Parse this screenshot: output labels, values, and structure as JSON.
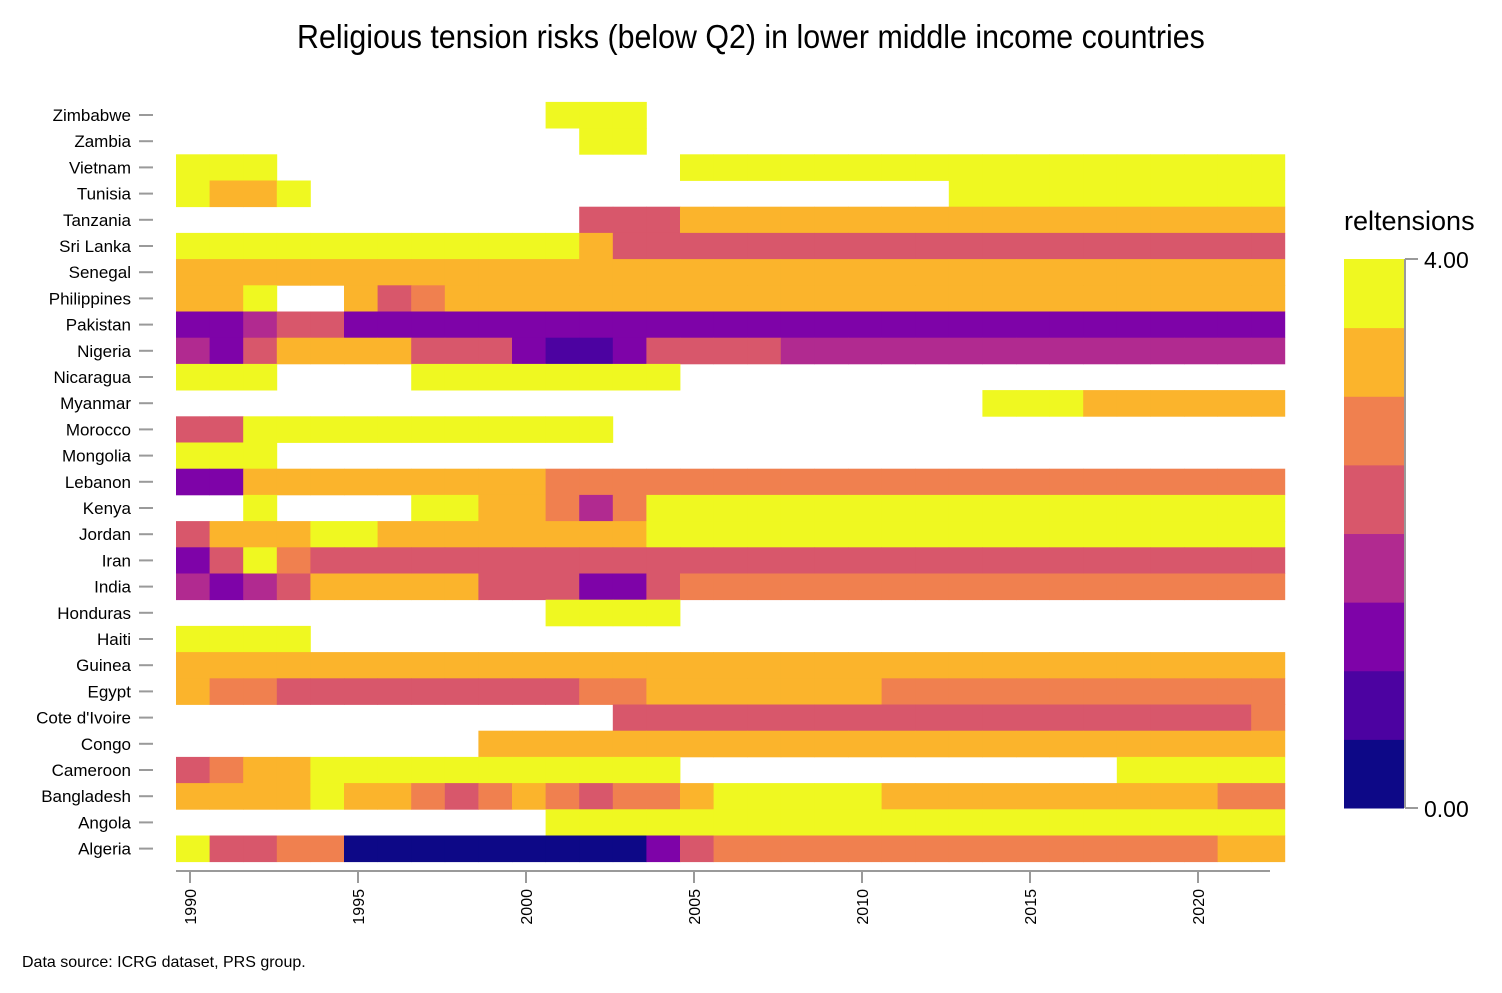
{
  "chart_data": {
    "type": "heatmap",
    "title": "Religious tension risks (below Q2) in lower middle income countries",
    "source": "Data source: ICRG dataset, PRS group.",
    "years": [
      1990,
      1991,
      1992,
      1993,
      1994,
      1995,
      1996,
      1997,
      1998,
      1999,
      2000,
      2001,
      2002,
      2003,
      2004,
      2005,
      2006,
      2007,
      2008,
      2009,
      2010,
      2011,
      2012,
      2013,
      2014,
      2015,
      2016,
      2017,
      2018,
      2019,
      2020,
      2021,
      2022
    ],
    "x_ticks": [
      1990,
      1995,
      2000,
      2005,
      2010,
      2015,
      2020
    ],
    "legend": {
      "title": "reltensions",
      "max_label": "4.00",
      "min_label": "0.00",
      "min": 0,
      "max": 4,
      "colors": [
        "#0d0887",
        "#4c02a1",
        "#7e03a8",
        "#a92395",
        "#cc4778",
        "#e66c5c",
        "#f89441",
        "#fdc328",
        "#f0f921"
      ]
    },
    "palette": [
      "#0d0887",
      "#4c02a1",
      "#7e03a8",
      "#b12a90",
      "#d8576b",
      "#f0804f",
      "#fbb42c",
      "#eff821"
    ],
    "value_key": {
      "0.5": 0,
      "1": 1,
      "1.5": 2,
      "2": 3,
      "2.5": 4,
      "3": 5,
      "3.5": 6,
      "4": 7
    },
    "series": [
      {
        "name": "Zimbabwe",
        "values": [
          null,
          null,
          null,
          null,
          null,
          null,
          null,
          null,
          null,
          null,
          null,
          4,
          4,
          4,
          null,
          null,
          null,
          null,
          null,
          null,
          null,
          null,
          null,
          null,
          null,
          null,
          null,
          null,
          null,
          null,
          null,
          null,
          null
        ]
      },
      {
        "name": "Zambia",
        "values": [
          null,
          null,
          null,
          null,
          null,
          null,
          null,
          null,
          null,
          null,
          null,
          null,
          4,
          4,
          null,
          null,
          null,
          null,
          null,
          null,
          null,
          null,
          null,
          null,
          null,
          null,
          null,
          null,
          null,
          null,
          null,
          null,
          null
        ]
      },
      {
        "name": "Vietnam",
        "values": [
          4,
          4,
          4,
          null,
          null,
          null,
          null,
          null,
          null,
          null,
          null,
          null,
          null,
          null,
          null,
          4,
          4,
          4,
          4,
          4,
          4,
          4,
          4,
          4,
          4,
          4,
          4,
          4,
          4,
          4,
          4,
          4,
          4
        ]
      },
      {
        "name": "Tunisia",
        "values": [
          4,
          3.5,
          3.5,
          4,
          null,
          null,
          null,
          null,
          null,
          null,
          null,
          null,
          null,
          null,
          null,
          null,
          null,
          null,
          null,
          null,
          null,
          null,
          null,
          4,
          4,
          4,
          4,
          4,
          4,
          4,
          4,
          4,
          4
        ]
      },
      {
        "name": "Tanzania",
        "values": [
          null,
          null,
          null,
          null,
          null,
          null,
          null,
          null,
          null,
          null,
          null,
          null,
          2.5,
          2.5,
          2.5,
          3.5,
          3.5,
          3.5,
          3.5,
          3.5,
          3.5,
          3.5,
          3.5,
          3.5,
          3.5,
          3.5,
          3.5,
          3.5,
          3.5,
          3.5,
          3.5,
          3.5,
          3.5
        ]
      },
      {
        "name": "Sri Lanka",
        "values": [
          4,
          4,
          4,
          4,
          4,
          4,
          4,
          4,
          4,
          4,
          4,
          4,
          3.5,
          2.5,
          2.5,
          2.5,
          2.5,
          2.5,
          2.5,
          2.5,
          2.5,
          2.5,
          2.5,
          2.5,
          2.5,
          2.5,
          2.5,
          2.5,
          2.5,
          2.5,
          2.5,
          2.5,
          2.5
        ]
      },
      {
        "name": "Senegal",
        "values": [
          3.5,
          3.5,
          3.5,
          3.5,
          3.5,
          3.5,
          3.5,
          3.5,
          3.5,
          3.5,
          3.5,
          3.5,
          3.5,
          3.5,
          3.5,
          3.5,
          3.5,
          3.5,
          3.5,
          3.5,
          3.5,
          3.5,
          3.5,
          3.5,
          3.5,
          3.5,
          3.5,
          3.5,
          3.5,
          3.5,
          3.5,
          3.5,
          3.5
        ]
      },
      {
        "name": "Philippines",
        "values": [
          3.5,
          3.5,
          4,
          null,
          null,
          3.5,
          2.5,
          3,
          3.5,
          3.5,
          3.5,
          3.5,
          3.5,
          3.5,
          3.5,
          3.5,
          3.5,
          3.5,
          3.5,
          3.5,
          3.5,
          3.5,
          3.5,
          3.5,
          3.5,
          3.5,
          3.5,
          3.5,
          3.5,
          3.5,
          3.5,
          3.5,
          3.5
        ]
      },
      {
        "name": "Pakistan",
        "values": [
          1.5,
          1.5,
          2,
          2.5,
          2.5,
          1.5,
          1.5,
          1.5,
          1.5,
          1.5,
          1.5,
          1.5,
          1.5,
          1.5,
          1.5,
          1.5,
          1.5,
          1.5,
          1.5,
          1.5,
          1.5,
          1.5,
          1.5,
          1.5,
          1.5,
          1.5,
          1.5,
          1.5,
          1.5,
          1.5,
          1.5,
          1.5,
          1.5
        ]
      },
      {
        "name": "Nigeria",
        "values": [
          2,
          1.5,
          2.5,
          3.5,
          3.5,
          3.5,
          3.5,
          2.5,
          2.5,
          2.5,
          1.5,
          1,
          1,
          1.5,
          2.5,
          2.5,
          2.5,
          2.5,
          2,
          2,
          2,
          2,
          2,
          2,
          2,
          2,
          2,
          2,
          2,
          2,
          2,
          2,
          2
        ]
      },
      {
        "name": "Nicaragua",
        "values": [
          4,
          4,
          4,
          null,
          null,
          null,
          null,
          4,
          4,
          4,
          4,
          4,
          4,
          4,
          4,
          null,
          null,
          null,
          null,
          null,
          null,
          null,
          null,
          null,
          null,
          null,
          null,
          null,
          null,
          null,
          null,
          null,
          null
        ]
      },
      {
        "name": "Myanmar",
        "values": [
          null,
          null,
          null,
          null,
          null,
          null,
          null,
          null,
          null,
          null,
          null,
          null,
          null,
          null,
          null,
          null,
          null,
          null,
          null,
          null,
          null,
          null,
          null,
          null,
          4,
          4,
          4,
          3.5,
          3.5,
          3.5,
          3.5,
          3.5,
          3.5
        ]
      },
      {
        "name": "Morocco",
        "values": [
          2.5,
          2.5,
          4,
          4,
          4,
          4,
          4,
          4,
          4,
          4,
          4,
          4,
          4,
          null,
          null,
          null,
          null,
          null,
          null,
          null,
          null,
          null,
          null,
          null,
          null,
          null,
          null,
          null,
          null,
          null,
          null,
          null,
          null
        ]
      },
      {
        "name": "Mongolia",
        "values": [
          4,
          4,
          4,
          null,
          null,
          null,
          null,
          null,
          null,
          null,
          null,
          null,
          null,
          null,
          null,
          null,
          null,
          null,
          null,
          null,
          null,
          null,
          null,
          null,
          null,
          null,
          null,
          null,
          null,
          null,
          null,
          null,
          null
        ]
      },
      {
        "name": "Lebanon",
        "values": [
          1.5,
          1.5,
          3.5,
          3.5,
          3.5,
          3.5,
          3.5,
          3.5,
          3.5,
          3.5,
          3.5,
          3,
          3,
          3,
          3,
          3,
          3,
          3,
          3,
          3,
          3,
          3,
          3,
          3,
          3,
          3,
          3,
          3,
          3,
          3,
          3,
          3,
          3
        ]
      },
      {
        "name": "Kenya",
        "values": [
          null,
          null,
          4,
          null,
          null,
          null,
          null,
          4,
          4,
          3.5,
          3.5,
          3,
          2,
          3,
          4,
          4,
          4,
          4,
          4,
          4,
          4,
          4,
          4,
          4,
          4,
          4,
          4,
          4,
          4,
          4,
          4,
          4,
          4
        ]
      },
      {
        "name": "Jordan",
        "values": [
          2.5,
          3.5,
          3.5,
          3.5,
          4,
          4,
          3.5,
          3.5,
          3.5,
          3.5,
          3.5,
          3.5,
          3.5,
          3.5,
          4,
          4,
          4,
          4,
          4,
          4,
          4,
          4,
          4,
          4,
          4,
          4,
          4,
          4,
          4,
          4,
          4,
          4,
          4
        ]
      },
      {
        "name": "Iran",
        "values": [
          1.5,
          2.5,
          4,
          3,
          2.5,
          2.5,
          2.5,
          2.5,
          2.5,
          2.5,
          2.5,
          2.5,
          2.5,
          2.5,
          2.5,
          2.5,
          2.5,
          2.5,
          2.5,
          2.5,
          2.5,
          2.5,
          2.5,
          2.5,
          2.5,
          2.5,
          2.5,
          2.5,
          2.5,
          2.5,
          2.5,
          2.5,
          2.5
        ]
      },
      {
        "name": "India",
        "values": [
          2,
          1.5,
          2,
          2.5,
          3.5,
          3.5,
          3.5,
          3.5,
          3.5,
          2.5,
          2.5,
          2.5,
          1.5,
          1.5,
          2.5,
          3,
          3,
          3,
          3,
          3,
          3,
          3,
          3,
          3,
          3,
          3,
          3,
          3,
          3,
          3,
          3,
          3,
          3
        ]
      },
      {
        "name": "Honduras",
        "values": [
          null,
          null,
          null,
          null,
          null,
          null,
          null,
          null,
          null,
          null,
          null,
          4,
          4,
          4,
          4,
          null,
          null,
          null,
          null,
          null,
          null,
          null,
          null,
          null,
          null,
          null,
          null,
          null,
          null,
          null,
          null,
          null,
          null
        ]
      },
      {
        "name": "Haiti",
        "values": [
          4,
          4,
          4,
          4,
          null,
          null,
          null,
          null,
          null,
          null,
          null,
          null,
          null,
          null,
          null,
          null,
          null,
          null,
          null,
          null,
          null,
          null,
          null,
          null,
          null,
          null,
          null,
          null,
          null,
          null,
          null,
          null,
          null
        ]
      },
      {
        "name": "Guinea",
        "values": [
          3.5,
          3.5,
          3.5,
          3.5,
          3.5,
          3.5,
          3.5,
          3.5,
          3.5,
          3.5,
          3.5,
          3.5,
          3.5,
          3.5,
          3.5,
          3.5,
          3.5,
          3.5,
          3.5,
          3.5,
          3.5,
          3.5,
          3.5,
          3.5,
          3.5,
          3.5,
          3.5,
          3.5,
          3.5,
          3.5,
          3.5,
          3.5,
          3.5
        ]
      },
      {
        "name": "Egypt",
        "values": [
          3.5,
          3,
          3,
          2.5,
          2.5,
          2.5,
          2.5,
          2.5,
          2.5,
          2.5,
          2.5,
          2.5,
          3,
          3,
          3.5,
          3.5,
          3.5,
          3.5,
          3.5,
          3.5,
          3.5,
          3,
          3,
          3,
          3,
          3,
          3,
          3,
          3,
          3,
          3,
          3,
          3
        ]
      },
      {
        "name": "Cote d'Ivoire",
        "values": [
          null,
          null,
          null,
          null,
          null,
          null,
          null,
          null,
          null,
          null,
          null,
          null,
          null,
          2.5,
          2.5,
          2.5,
          2.5,
          2.5,
          2.5,
          2.5,
          2.5,
          2.5,
          2.5,
          2.5,
          2.5,
          2.5,
          2.5,
          2.5,
          2.5,
          2.5,
          2.5,
          2.5,
          3
        ]
      },
      {
        "name": "Congo",
        "values": [
          null,
          null,
          null,
          null,
          null,
          null,
          null,
          null,
          null,
          3.5,
          3.5,
          3.5,
          3.5,
          3.5,
          3.5,
          3.5,
          3.5,
          3.5,
          3.5,
          3.5,
          3.5,
          3.5,
          3.5,
          3.5,
          3.5,
          3.5,
          3.5,
          3.5,
          3.5,
          3.5,
          3.5,
          3.5,
          3.5
        ]
      },
      {
        "name": "Cameroon",
        "values": [
          2.5,
          3,
          3.5,
          3.5,
          4,
          4,
          4,
          4,
          4,
          4,
          4,
          4,
          4,
          4,
          4,
          null,
          null,
          null,
          null,
          null,
          null,
          null,
          null,
          null,
          null,
          null,
          null,
          null,
          4,
          4,
          4,
          4,
          4
        ]
      },
      {
        "name": "Bangladesh",
        "values": [
          3.5,
          3.5,
          3.5,
          3.5,
          4,
          3.5,
          3.5,
          3,
          2.5,
          3,
          3.5,
          3,
          2.5,
          3,
          3,
          3.5,
          4,
          4,
          4,
          4,
          4,
          3.5,
          3.5,
          3.5,
          3.5,
          3.5,
          3.5,
          3.5,
          3.5,
          3.5,
          3.5,
          3,
          3
        ]
      },
      {
        "name": "Angola",
        "values": [
          null,
          null,
          null,
          null,
          null,
          null,
          null,
          null,
          null,
          null,
          null,
          4,
          4,
          4,
          4,
          4,
          4,
          4,
          4,
          4,
          4,
          4,
          4,
          4,
          4,
          4,
          4,
          4,
          4,
          4,
          4,
          4,
          4
        ]
      },
      {
        "name": "Algeria",
        "values": [
          4,
          2.5,
          2.5,
          3,
          3,
          0.5,
          0.5,
          0.5,
          0.5,
          0.5,
          0.5,
          0.5,
          0.5,
          0.5,
          1.5,
          2.5,
          3,
          3,
          3,
          3,
          3,
          3,
          3,
          3,
          3,
          3,
          3,
          3,
          3,
          3,
          3,
          3.5,
          3.5
        ]
      }
    ]
  }
}
